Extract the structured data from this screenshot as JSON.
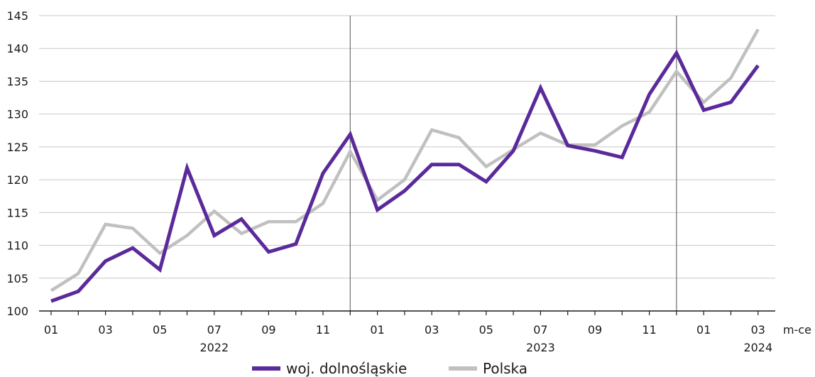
{
  "chart_data": {
    "type": "line",
    "title": "",
    "xlabel": "m-ce",
    "ylabel": "",
    "ylim": [
      100,
      145
    ],
    "yticks": [
      100,
      105,
      110,
      115,
      120,
      125,
      130,
      135,
      140,
      145
    ],
    "grid": "horizontal",
    "legend_position": "bottom-center",
    "x": [
      "2022-01",
      "2022-02",
      "2022-03",
      "2022-04",
      "2022-05",
      "2022-06",
      "2022-07",
      "2022-08",
      "2022-09",
      "2022-10",
      "2022-11",
      "2022-12",
      "2023-01",
      "2023-02",
      "2023-03",
      "2023-04",
      "2023-05",
      "2023-06",
      "2023-07",
      "2023-08",
      "2023-09",
      "2023-10",
      "2023-11",
      "2023-12",
      "2024-01",
      "2024-02",
      "2024-03"
    ],
    "xtick_labels": [
      "01",
      "",
      "03",
      "",
      "05",
      "",
      "07",
      "",
      "09",
      "",
      "11",
      "",
      "01",
      "",
      "03",
      "",
      "05",
      "",
      "07",
      "",
      "09",
      "",
      "11",
      "",
      "01",
      "",
      "03"
    ],
    "year_labels": [
      {
        "label": "2022",
        "month": "2022-07"
      },
      {
        "label": "2023",
        "month": "2023-07"
      },
      {
        "label": "2024",
        "month": "2024-03"
      }
    ],
    "year_separators": [
      "2022-12",
      "2023-12"
    ],
    "series": [
      {
        "name": "woj. dolnośląskie",
        "color": "#5b2a9a",
        "values": [
          101.5,
          103.0,
          107.6,
          109.6,
          106.3,
          121.8,
          111.5,
          114.0,
          109.0,
          110.2,
          121.0,
          126.9,
          115.4,
          118.3,
          122.3,
          122.3,
          119.7,
          124.4,
          134.0,
          125.2,
          124.4,
          123.4,
          133.0,
          139.3,
          130.6,
          131.8,
          137.4
        ]
      },
      {
        "name": "Polska",
        "color": "#c0c0c0",
        "values": [
          103.1,
          105.7,
          113.2,
          112.6,
          108.8,
          111.5,
          115.2,
          111.8,
          113.6,
          113.6,
          116.4,
          124.3,
          116.9,
          120.0,
          127.6,
          126.4,
          122.0,
          124.6,
          127.1,
          125.3,
          125.3,
          128.2,
          130.3,
          136.5,
          131.8,
          135.5,
          142.9
        ]
      }
    ]
  }
}
